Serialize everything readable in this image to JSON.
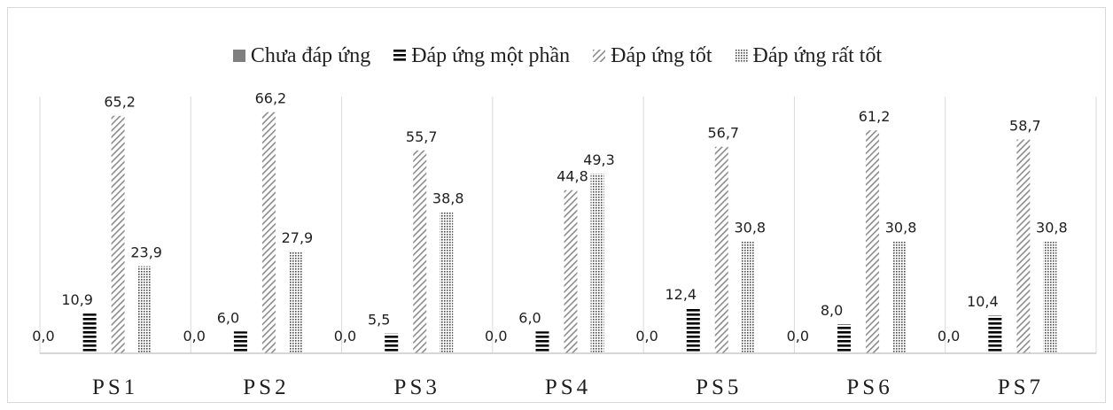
{
  "chart_data": {
    "type": "bar",
    "categories": [
      "PS1",
      "PS2",
      "PS3",
      "PS4",
      "PS5",
      "PS6",
      "PS7"
    ],
    "series": [
      {
        "name": "Chưa đáp ứng",
        "values": [
          0.0,
          0.0,
          0.0,
          0.0,
          0.0,
          0.0,
          0.0
        ],
        "labels": [
          "0,0",
          "0,0",
          "0,0",
          "0,0",
          "0,0",
          "0,0",
          "0,0"
        ],
        "pattern": "solid",
        "color": "#7f7f7f"
      },
      {
        "name": "Đáp ứng một phần",
        "values": [
          10.9,
          6.0,
          5.5,
          6.0,
          12.4,
          8.0,
          10.4
        ],
        "labels": [
          "10,9",
          "6,0",
          "5,5",
          "6,0",
          "12,4",
          "8,0",
          "10,4"
        ],
        "pattern": "horizontal-stripes",
        "color": "#000000"
      },
      {
        "name": "Đáp ứng tốt",
        "values": [
          65.2,
          66.2,
          55.7,
          44.8,
          56.7,
          61.2,
          58.7
        ],
        "labels": [
          "65,2",
          "66,2",
          "55,7",
          "44,8",
          "56,7",
          "61,2",
          "58,7"
        ],
        "pattern": "diagonal-stripes",
        "color": "#8c8c8c"
      },
      {
        "name": "Đáp ứng rất tốt",
        "values": [
          23.9,
          27.9,
          38.8,
          49.3,
          30.8,
          30.8,
          30.8
        ],
        "labels": [
          "23,9",
          "27,9",
          "38,8",
          "49,3",
          "30,8",
          "30,8",
          "30,8"
        ],
        "pattern": "dots",
        "color": "#4d4d4d"
      }
    ],
    "ylim": [
      0,
      70
    ],
    "grid": false,
    "category_separators": true,
    "legend_position": "top"
  }
}
